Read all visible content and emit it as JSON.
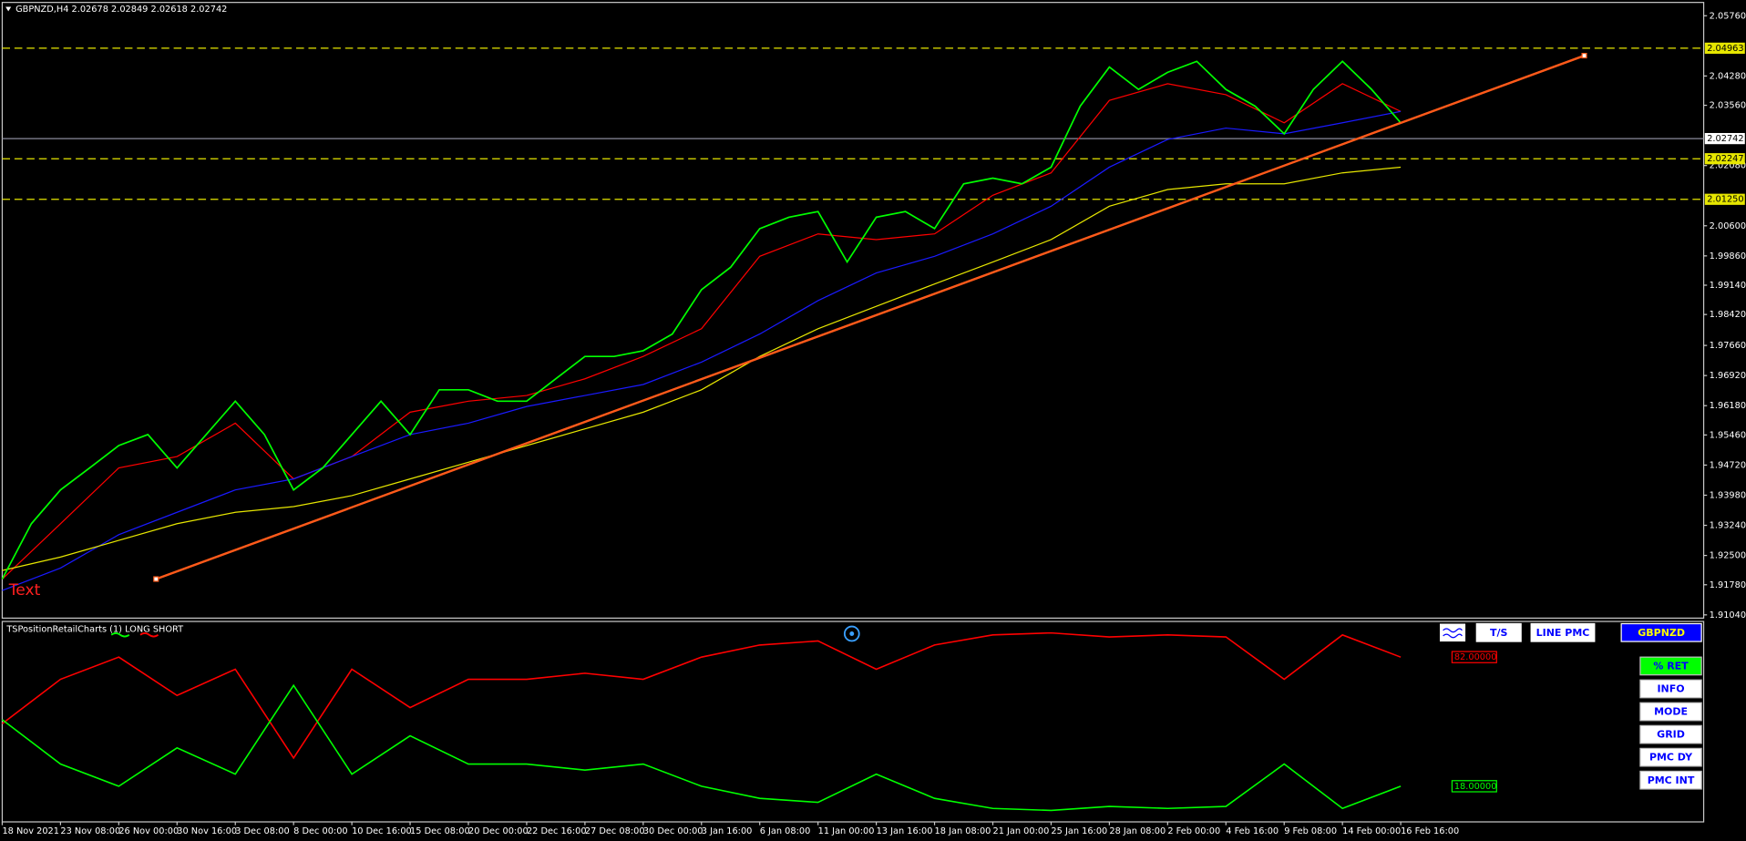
{
  "header": {
    "symbol_info": "GBPNZD,H4  2.02678 2.02849 2.02618 2.02742"
  },
  "price_chart": {
    "ylim": [
      1.9096,
      2.0606
    ],
    "yticks": [
      {
        "value": 2.0576,
        "label": "2.05760"
      },
      {
        "value": 2.0428,
        "label": "2.04280"
      },
      {
        "value": 2.0356,
        "label": "2.03560"
      },
      {
        "value": 2.0208,
        "label": "2.02080"
      },
      {
        "value": 2.006,
        "label": "2.00600"
      },
      {
        "value": 1.9986,
        "label": "1.99860"
      },
      {
        "value": 1.9914,
        "label": "1.99140"
      },
      {
        "value": 1.9842,
        "label": "1.98420"
      },
      {
        "value": 1.9766,
        "label": "1.97660"
      },
      {
        "value": 1.9692,
        "label": "1.96920"
      },
      {
        "value": 1.9618,
        "label": "1.96180"
      },
      {
        "value": 1.9546,
        "label": "1.95460"
      },
      {
        "value": 1.9472,
        "label": "1.94720"
      },
      {
        "value": 1.9398,
        "label": "1.93980"
      },
      {
        "value": 1.9324,
        "label": "1.93240"
      },
      {
        "value": 1.925,
        "label": "1.92500"
      },
      {
        "value": 1.9178,
        "label": "1.91780"
      },
      {
        "value": 1.9104,
        "label": "1.91040"
      }
    ],
    "levels": [
      {
        "value": 2.04963,
        "label": "2.04963"
      },
      {
        "value": 2.02247,
        "label": "2.02247"
      },
      {
        "value": 2.0125,
        "label": "2.01250"
      }
    ],
    "current": {
      "value": 2.02742,
      "label": "2.02742"
    },
    "x_labels": [
      "18 Nov 2021",
      "23 Nov 08:00",
      "26 Nov 00:00",
      "30 Nov 16:00",
      "3 Dec 08:00",
      "8 Dec 00:00",
      "10 Dec 16:00",
      "15 Dec 08:00",
      "20 Dec 00:00",
      "22 Dec 16:00",
      "27 Dec 08:00",
      "30 Dec 00:00",
      "3 Jan 16:00",
      "6 Jan 08:00",
      "11 Jan 00:00",
      "13 Jan 16:00",
      "18 Jan 08:00",
      "21 Jan 00:00",
      "25 Jan 16:00",
      "28 Jan 08:00",
      "2 Feb 00:00",
      "4 Feb 16:00",
      "9 Feb 08:00",
      "14 Feb 00:00",
      "16 Feb 16:00"
    ],
    "price": {
      "color": "#00ff00",
      "values": [
        1.9192,
        1.9328,
        1.9411,
        1.9465,
        1.952,
        1.9547,
        1.9465,
        1.9547,
        1.9629,
        1.9547,
        1.9411,
        1.9465,
        1.9547,
        1.9629,
        1.9547,
        1.9657,
        1.9657,
        1.9629,
        1.9629,
        1.9684,
        1.9739,
        1.9739,
        1.9753,
        1.9794,
        1.9903,
        1.9958,
        2.0053,
        2.0081,
        2.0095,
        1.9971,
        2.0081,
        2.0095,
        2.0053,
        2.0163,
        2.0177,
        2.0163,
        2.0204,
        2.0354,
        2.045,
        2.0395,
        2.0437,
        2.0464,
        2.0395,
        2.0354,
        2.0286,
        2.0395,
        2.0464,
        2.0395,
        2.0313
      ]
    },
    "moving_averages": [
      {
        "color": "#ff0000",
        "values": [
          1.9192,
          1.9328,
          1.9465,
          1.9493,
          1.9575,
          1.9438,
          1.9493,
          1.9602,
          1.9629,
          1.9643,
          1.9684,
          1.9739,
          1.9807,
          1.9985,
          2.004,
          2.0026,
          2.004,
          2.0135,
          2.019,
          2.0368,
          2.0409,
          2.0382,
          2.0313,
          2.0409,
          2.0341
        ]
      },
      {
        "color": "#1a1aff",
        "values": [
          1.9164,
          1.9219,
          1.9301,
          1.9356,
          1.9411,
          1.9438,
          1.9493,
          1.9547,
          1.9575,
          1.9616,
          1.9643,
          1.967,
          1.9725,
          1.9794,
          1.9876,
          1.9944,
          1.9985,
          2.004,
          2.0108,
          2.0204,
          2.0272,
          2.03,
          2.0286,
          2.0313,
          2.0341
        ]
      },
      {
        "color": "#e6e600",
        "values": [
          1.9213,
          1.9246,
          1.9287,
          1.9328,
          1.9356,
          1.937,
          1.9397,
          1.9438,
          1.9479,
          1.952,
          1.9561,
          1.9602,
          1.9657,
          1.9739,
          1.9807,
          1.9862,
          1.9917,
          1.9971,
          2.0026,
          2.0108,
          2.0149,
          2.0163,
          2.0163,
          2.019,
          2.0204
        ]
      }
    ],
    "trend_line": {
      "color": "#ff5a1a",
      "values": [
        1.9192,
        2.0478
      ]
    },
    "annotation": "Text"
  },
  "indicator": {
    "title": "TSPositionRetailCharts (1) LONG SHORT",
    "ylim": [
      0,
      100
    ],
    "series": [
      {
        "color": "#ff0000",
        "values": [
          49,
          71,
          82,
          63,
          76,
          32,
          76,
          57,
          71,
          71,
          74,
          71,
          82,
          88,
          90,
          76,
          88,
          93,
          94,
          92,
          93,
          92,
          71,
          93,
          82
        ],
        "value_label": "82.00000"
      },
      {
        "color": "#00ff00",
        "values": [
          51,
          29,
          18,
          37,
          24,
          68,
          24,
          43,
          29,
          29,
          26,
          29,
          18,
          12,
          10,
          24,
          12,
          7,
          6,
          8,
          7,
          8,
          29,
          7,
          18
        ],
        "value_label": "18.00000"
      }
    ]
  },
  "buttons": {
    "top": [
      "T/S",
      "LINE PMC",
      "GBPNZD"
    ],
    "side": [
      "% RET",
      "INFO",
      "MODE",
      "GRID",
      "PMC DY",
      "PMC INT"
    ]
  }
}
